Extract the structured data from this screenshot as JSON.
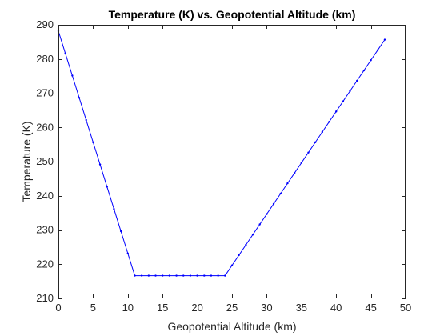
{
  "chart_data": {
    "type": "line",
    "title": "Temperature (K) vs. Geopotential Altitude (km)",
    "xlabel": "Geopotential Altitude (km)",
    "ylabel": "Temperature (K)",
    "xlim": [
      0,
      50
    ],
    "ylim": [
      210,
      290
    ],
    "xticks": [
      0,
      5,
      10,
      15,
      20,
      25,
      30,
      35,
      40,
      45,
      50
    ],
    "yticks": [
      210,
      220,
      230,
      240,
      250,
      260,
      270,
      280,
      290
    ],
    "grid": false,
    "line_color": "#0000ff",
    "axis_color": "#262626",
    "series": [
      {
        "marker": "point",
        "x": [
          0,
          1,
          2,
          3,
          4,
          5,
          6,
          7,
          8,
          9,
          10,
          11,
          12,
          13,
          14,
          15,
          16,
          17,
          18,
          19,
          20,
          21,
          22,
          23,
          24,
          25,
          26,
          27,
          28,
          29,
          30,
          31,
          32,
          33,
          34,
          35,
          36,
          37,
          38,
          39,
          40,
          41,
          42,
          43,
          44,
          45,
          46,
          47
        ],
        "y": [
          288.15,
          281.65,
          275.15,
          268.65,
          262.15,
          255.65,
          249.15,
          242.65,
          236.15,
          229.65,
          223.15,
          216.65,
          216.65,
          216.65,
          216.65,
          216.65,
          216.65,
          216.65,
          216.65,
          216.65,
          216.65,
          216.65,
          216.65,
          216.65,
          216.65,
          219.65,
          222.65,
          225.65,
          228.65,
          231.65,
          234.65,
          237.65,
          240.65,
          243.65,
          246.65,
          249.65,
          252.65,
          255.65,
          258.65,
          261.65,
          264.65,
          267.65,
          270.65,
          273.65,
          276.65,
          279.65,
          282.65,
          285.65
        ]
      }
    ]
  }
}
